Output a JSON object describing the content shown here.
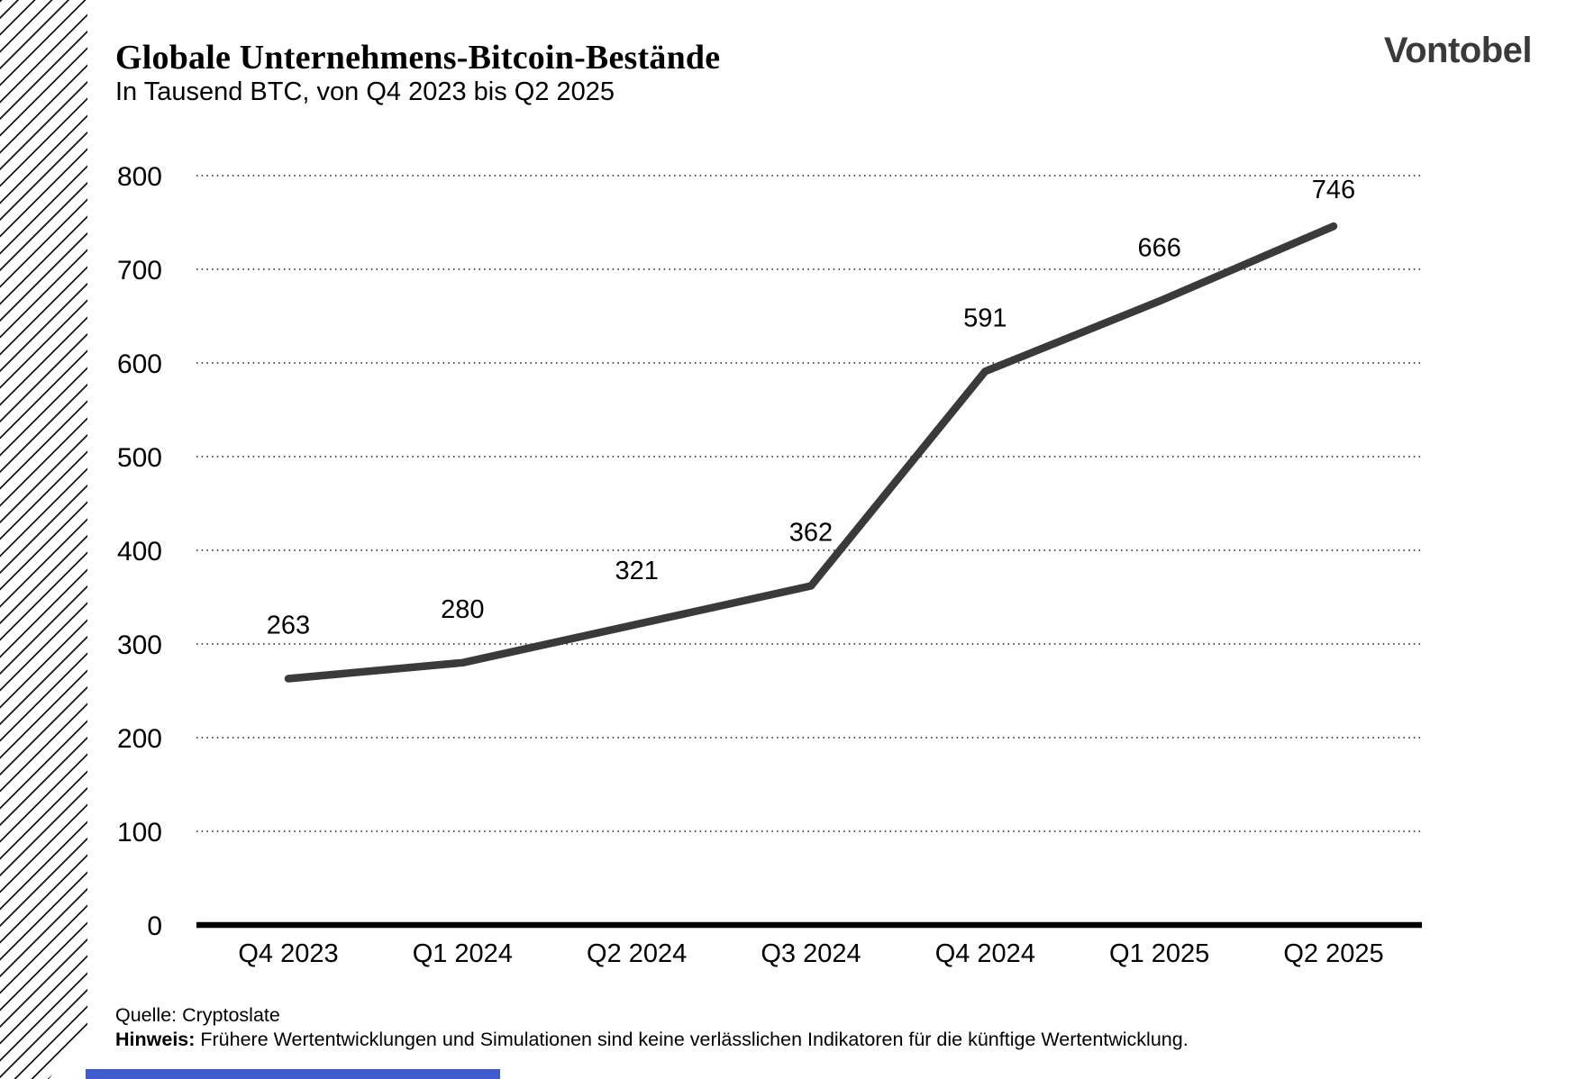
{
  "header": {
    "title": "Globale Unternehmens-Bitcoin-Bestände",
    "subtitle": "In Tausend BTC, von Q4 2023 bis Q2 2025",
    "logo": "Vontobel"
  },
  "chart_data": {
    "type": "line",
    "title": "Globale Unternehmens-Bitcoin-Bestände",
    "subtitle": "In Tausend BTC, von Q4 2023 bis Q2 2025",
    "categories": [
      "Q4 2023",
      "Q1 2024",
      "Q2 2024",
      "Q3 2024",
      "Q4 2024",
      "Q1 2025",
      "Q2 2025"
    ],
    "values": [
      263,
      280,
      321,
      362,
      591,
      666,
      746
    ],
    "xlabel": "",
    "ylabel": "",
    "ylim": [
      0,
      800
    ],
    "ytick_step": 100,
    "grid": "horizontal-dotted",
    "legend": "none",
    "data_labels": true,
    "line_color": "#3a3a3a"
  },
  "footer": {
    "source": "Quelle: Cryptoslate",
    "note_label": "Hinweis:",
    "note": "Frühere Wertentwicklungen und Simulationen sind keine verlässlichen Indikatoren für die künftige Wertentwicklung."
  },
  "colors": {
    "text": "#000000",
    "line": "#3a3a3a",
    "logo": "#3a3a3a",
    "accent_bar": "#3f5bce"
  }
}
